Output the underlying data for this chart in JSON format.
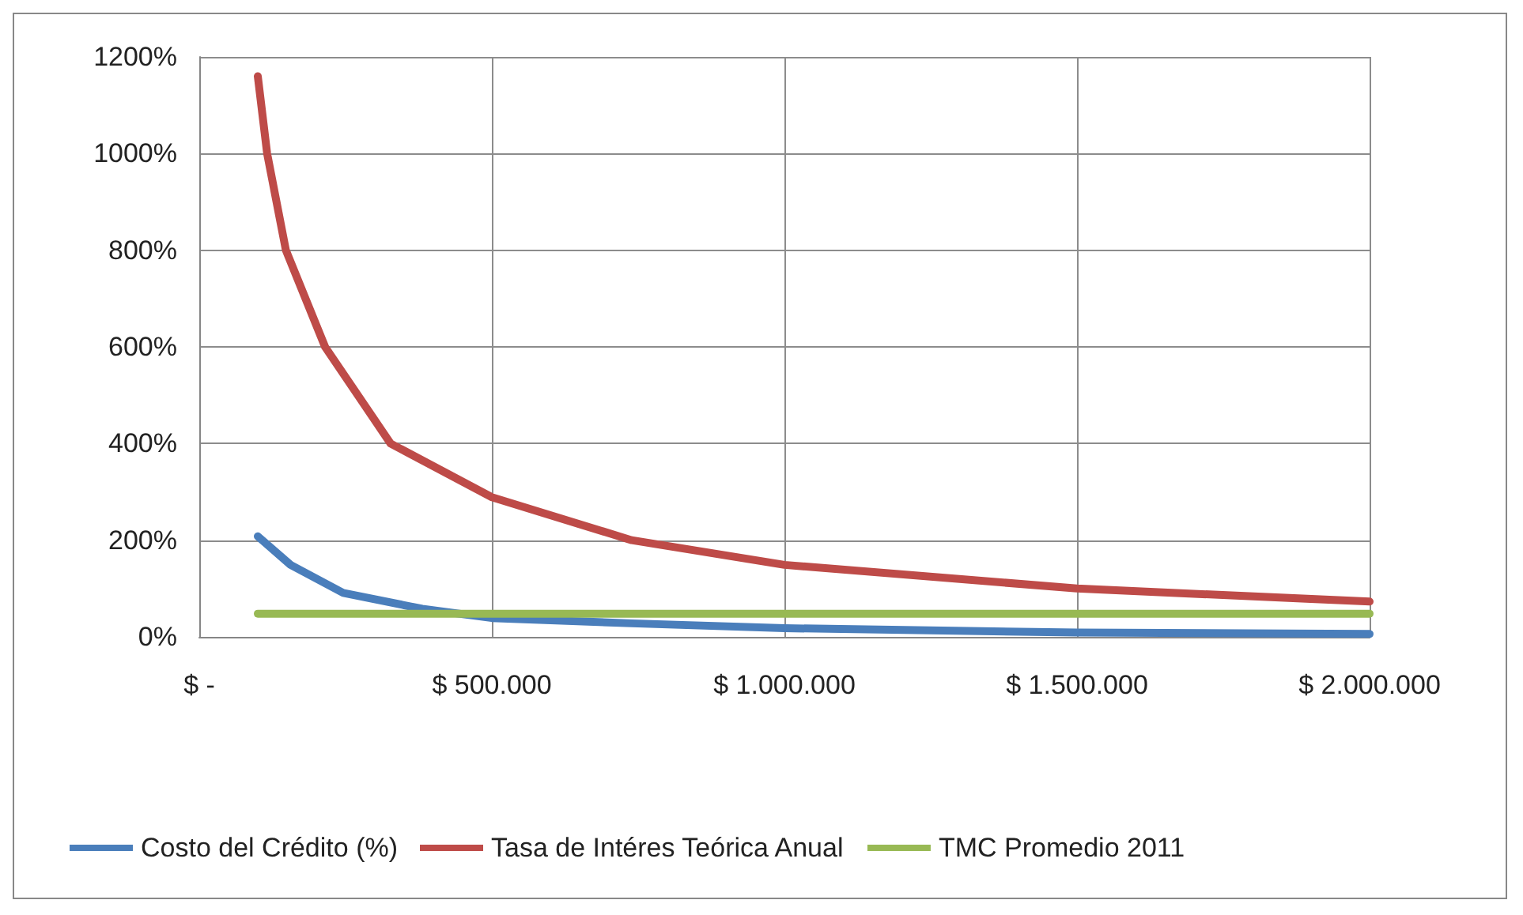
{
  "chart_data": {
    "type": "line",
    "xlim": [
      0,
      2000000
    ],
    "ylim": [
      0,
      12
    ],
    "xticks": [
      {
        "value": 0,
        "label": "$ -"
      },
      {
        "value": 500000,
        "label": "$ 500.000"
      },
      {
        "value": 1000000,
        "label": "$ 1.000.000"
      },
      {
        "value": 1500000,
        "label": "$ 1.500.000"
      },
      {
        "value": 2000000,
        "label": "$ 2.000.000"
      }
    ],
    "yticks": [
      {
        "value": 0,
        "label": "0%"
      },
      {
        "value": 2,
        "label": "200%"
      },
      {
        "value": 4,
        "label": "400%"
      },
      {
        "value": 6,
        "label": "600%"
      },
      {
        "value": 8,
        "label": "800%"
      },
      {
        "value": 10,
        "label": "1000%"
      },
      {
        "value": 12,
        "label": "1200%"
      }
    ],
    "series": [
      {
        "name": "Costo del Crédito (%)",
        "color": "#4a7ebb",
        "x": [
          100000,
          156000,
          246000,
          381000,
          500000,
          739000,
          1000000,
          1500000,
          2000000
        ],
        "values": [
          2.08,
          1.49,
          0.91,
          0.58,
          0.39,
          0.28,
          0.18,
          0.09,
          0.06
        ]
      },
      {
        "name": "Tasa de Intéres Teórica Anual",
        "color": "#be4b48",
        "x": [
          100000,
          116000,
          148000,
          215000,
          327000,
          500000,
          739000,
          1000000,
          1500000,
          2000000
        ],
        "values": [
          11.6,
          10.0,
          8.0,
          6.0,
          4.0,
          2.89,
          2.0,
          1.49,
          1.0,
          0.73
        ]
      },
      {
        "name": "TMC Promedio 2011",
        "color": "#98b954",
        "x": [
          100000,
          2000000
        ],
        "values": [
          0.48,
          0.48
        ]
      }
    ],
    "grid": true,
    "legend": "bottom",
    "marker": "none",
    "line_style": "solid"
  }
}
